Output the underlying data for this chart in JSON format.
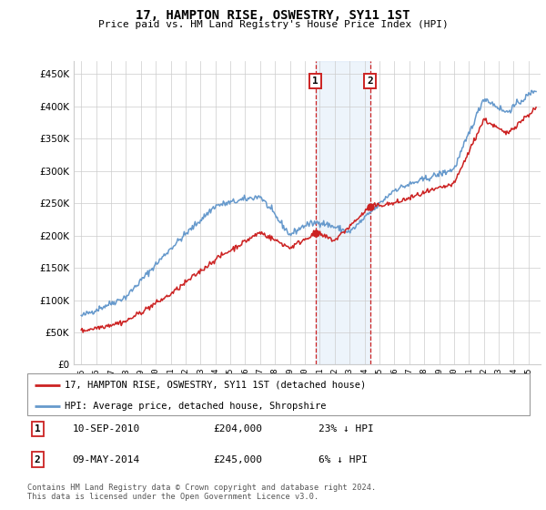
{
  "title": "17, HAMPTON RISE, OSWESTRY, SY11 1ST",
  "subtitle": "Price paid vs. HM Land Registry's House Price Index (HPI)",
  "hpi_label": "HPI: Average price, detached house, Shropshire",
  "property_label": "17, HAMPTON RISE, OSWESTRY, SY11 1ST (detached house)",
  "footnote": "Contains HM Land Registry data © Crown copyright and database right 2024.\nThis data is licensed under the Open Government Licence v3.0.",
  "sale1_date": "10-SEP-2010",
  "sale1_price": 204000,
  "sale1_hpi_pct": "23% ↓ HPI",
  "sale1_label": "1",
  "sale1_year": 2010.7,
  "sale2_date": "09-MAY-2014",
  "sale2_price": 245000,
  "sale2_hpi_pct": "6% ↓ HPI",
  "sale2_label": "2",
  "sale2_year": 2014.36,
  "ylim_min": 0,
  "ylim_max": 470000,
  "xlim_min": 1994.5,
  "xlim_max": 2025.8,
  "hpi_color": "#6699cc",
  "property_color": "#cc2222",
  "background_color": "#ffffff",
  "grid_color": "#cccccc",
  "shade_color": "#cce0f5"
}
